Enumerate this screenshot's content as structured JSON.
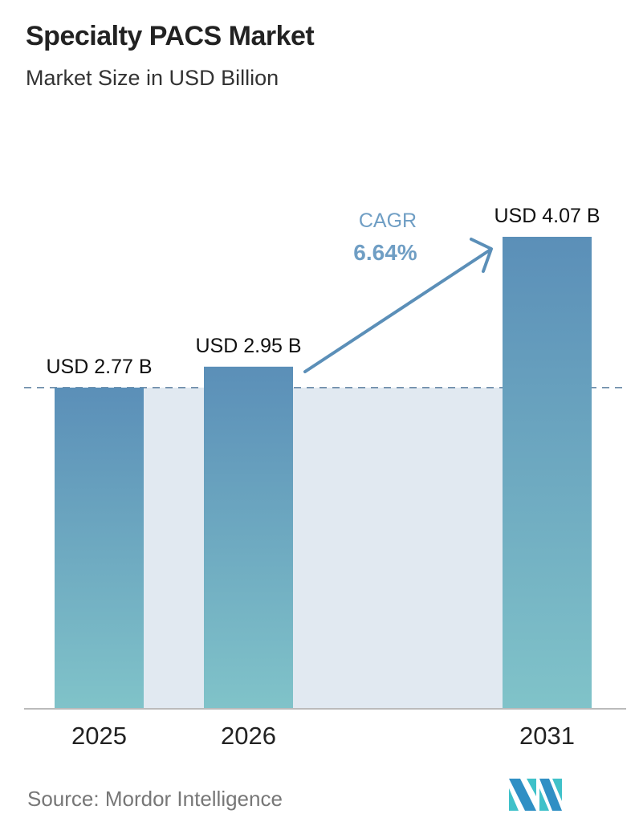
{
  "title": "Specialty PACS Market",
  "subtitle": "Market Size in USD Billion",
  "source": "Source:  Mordor Intelligence",
  "logo_text": "Mordor Intelligence",
  "colors": {
    "bar_top": "#5b8fb8",
    "bar_bottom": "#80c3c9",
    "band": "#e1e9f1",
    "arrow": "#5b8fb8",
    "cagr": "#6f9ec4"
  },
  "chart_data": {
    "type": "bar",
    "categories": [
      "2025",
      "2026",
      "2031"
    ],
    "values": [
      2.77,
      2.95,
      4.07
    ],
    "data_labels": [
      "USD 2.77 B",
      "USD 2.95 B",
      "USD 4.07 B"
    ],
    "ylim": [
      0,
      4.07
    ],
    "grid": false,
    "reference_line": 2.77,
    "annotation": {
      "label": "CAGR",
      "value": "6.64%"
    }
  }
}
